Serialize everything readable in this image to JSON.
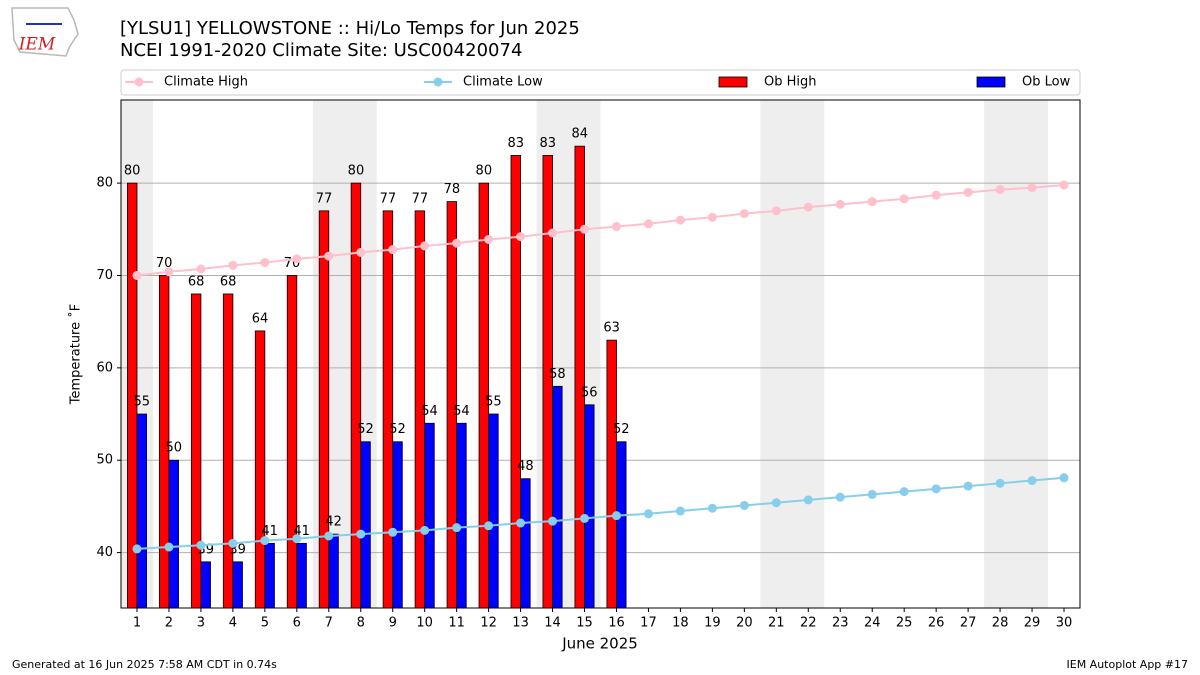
{
  "logo": "IEM",
  "footer": {
    "left": "Generated at 16 Jun 2025 7:58 AM CDT in 0.74s",
    "right": "IEM Autoplot App #17"
  },
  "chart_data": {
    "type": "bar",
    "title": "[YLSU1] YELLOWSTONE :: Hi/Lo Temps for Jun 2025",
    "subtitle": "NCEI 1991-2020 Climate Site: USC00420074",
    "x_label": "June 2025",
    "y_label": "Temperature ˚F",
    "x": [
      1,
      2,
      3,
      4,
      5,
      6,
      7,
      8,
      9,
      10,
      11,
      12,
      13,
      14,
      15,
      16,
      17,
      18,
      19,
      20,
      21,
      22,
      23,
      24,
      25,
      26,
      27,
      28,
      29,
      30
    ],
    "xlim": [
      0.5,
      30.5
    ],
    "xticks": [
      1,
      2,
      3,
      4,
      5,
      6,
      7,
      8,
      9,
      10,
      11,
      12,
      13,
      14,
      15,
      16,
      17,
      18,
      19,
      20,
      21,
      22,
      23,
      24,
      25,
      26,
      27,
      28,
      29,
      30
    ],
    "ylim": [
      34,
      89
    ],
    "yticks": [
      40,
      50,
      60,
      70,
      80
    ],
    "grid": true,
    "shaded_ranges": [
      [
        0.5,
        1.5
      ],
      [
        6.5,
        8.5
      ],
      [
        13.5,
        15.5
      ],
      [
        20.5,
        22.5
      ],
      [
        27.5,
        29.5
      ]
    ],
    "shade_color": "#eeeeee",
    "series": [
      {
        "name": "Climate High",
        "kind": "line",
        "color": "#ffc0cb",
        "values": [
          70.0,
          70.4,
          70.7,
          71.1,
          71.4,
          71.8,
          72.1,
          72.5,
          72.8,
          73.2,
          73.5,
          73.9,
          74.2,
          74.6,
          75.0,
          75.3,
          75.6,
          76.0,
          76.3,
          76.7,
          77.0,
          77.4,
          77.7,
          78.0,
          78.3,
          78.7,
          79.0,
          79.3,
          79.5,
          79.8
        ]
      },
      {
        "name": "Climate Low",
        "kind": "line",
        "color": "#87ceeb",
        "values": [
          40.4,
          40.6,
          40.8,
          41.0,
          41.3,
          41.5,
          41.8,
          42.0,
          42.2,
          42.4,
          42.7,
          42.9,
          43.2,
          43.4,
          43.7,
          44.0,
          44.2,
          44.5,
          44.8,
          45.1,
          45.4,
          45.7,
          46.0,
          46.3,
          46.6,
          46.9,
          47.2,
          47.5,
          47.8,
          48.1
        ]
      },
      {
        "name": "Ob High",
        "kind": "bar",
        "color": "#ff0000",
        "values": [
          80,
          70,
          68,
          68,
          64,
          70,
          77,
          80,
          77,
          77,
          78,
          80,
          83,
          83,
          84,
          63,
          null,
          null,
          null,
          null,
          null,
          null,
          null,
          null,
          null,
          null,
          null,
          null,
          null,
          null
        ]
      },
      {
        "name": "Ob Low",
        "kind": "bar",
        "color": "#0000ff",
        "values": [
          55,
          50,
          39,
          39,
          41,
          41,
          42,
          52,
          52,
          54,
          54,
          55,
          48,
          58,
          56,
          52,
          null,
          null,
          null,
          null,
          null,
          null,
          null,
          null,
          null,
          null,
          null,
          null,
          null,
          null
        ]
      }
    ]
  }
}
